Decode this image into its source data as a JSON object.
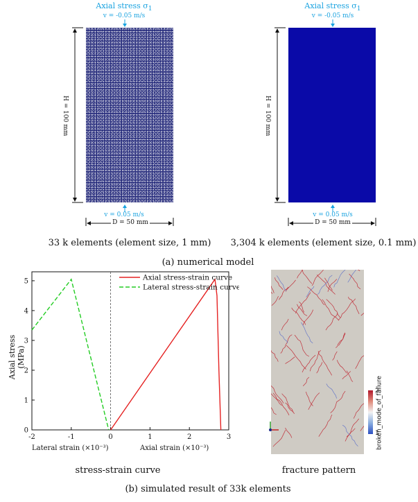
{
  "panel_a": {
    "left": {
      "top_title": "Axial stress σ",
      "top_title_sub": "1",
      "top_velocity": "v = -0.05 m/s",
      "bottom_velocity": "v = 0.05 m/s",
      "height_label": "H = 100 mm",
      "width_label": "D = 50 mm",
      "caption": "33 k elements (element size, 1 mm)"
    },
    "right": {
      "top_title": "Axial stress σ",
      "top_title_sub": "1",
      "top_velocity": "v = -0.05 m/s",
      "bottom_velocity": "v = 0.05 m/s",
      "height_label": "H = 100 mm",
      "width_label": "D = 50 mm",
      "caption": "3,304 k elements (element size, 0.1 mm)"
    },
    "caption": "(a) numerical model"
  },
  "panel_b": {
    "caption": "(b) simulated result of 33k elements",
    "chart_caption": "stress-strain curve",
    "fracture_caption": "fracture pattern",
    "colorbar": {
      "label": "broken_mode_of_failure",
      "max": "2",
      "min": "1"
    }
  },
  "chart_data": {
    "type": "line",
    "ylabel": "Axial stress (MPa)",
    "xlabel_left": "Lateral strain (×10⁻³)",
    "xlabel_right": "Axial strain (×10⁻³)",
    "xlim": [
      -2,
      3
    ],
    "ylim": [
      0,
      5.3
    ],
    "xticks": [
      "-2",
      "-1",
      "0",
      "1",
      "2",
      "3"
    ],
    "yticks": [
      "0",
      "1",
      "2",
      "3",
      "4",
      "5"
    ],
    "legend_position": "top-right",
    "series": [
      {
        "name": "Axial stress-strain curve",
        "color": "#e52222",
        "style": "solid",
        "x": [
          0,
          2.65,
          2.7,
          2.75,
          2.8
        ],
        "y": [
          0,
          5.05,
          4.5,
          2.0,
          0
        ]
      },
      {
        "name": "Lateral stress-strain curve",
        "color": "#22cc22",
        "style": "dashed",
        "x": [
          -2,
          -1.0,
          -0.05
        ],
        "y": [
          3.35,
          5.05,
          0
        ]
      }
    ]
  }
}
